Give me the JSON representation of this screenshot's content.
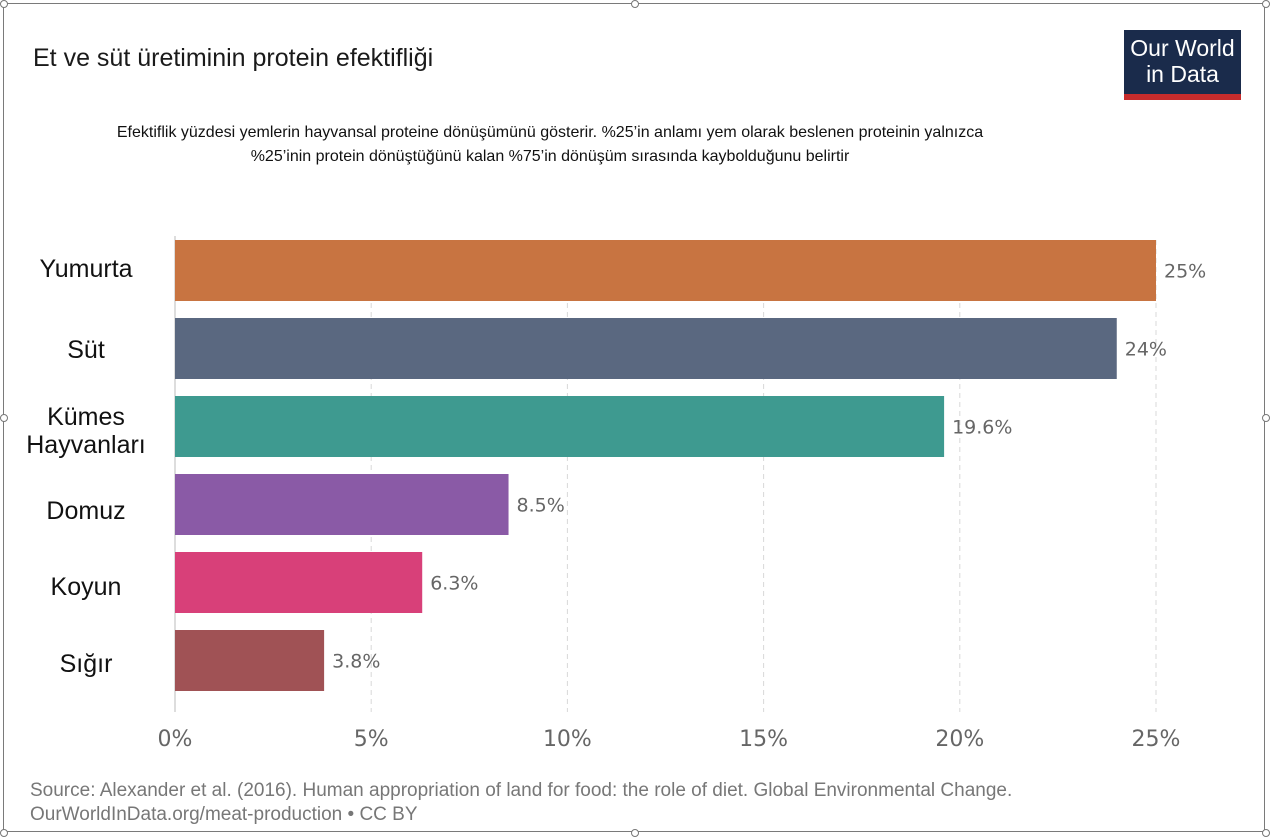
{
  "title": "Et ve süt üretiminin protein efektifliği",
  "subtitle_line1": "Efektiflik yüzdesi yemlerin hayvansal proteine dönüşümünü gösterir. %25’in anlamı yem olarak beslenen proteinin yalnızca",
  "subtitle_line2": "%25’inin protein dönüştüğünü kalan %75’in dönüşüm sırasında kaybolduğunu belirtir",
  "logo": {
    "line1": "Our World",
    "line2": "in Data",
    "bg_color": "#1a2b4b",
    "accent_color": "#c72c2c"
  },
  "source": {
    "line1": "Source: Alexander et al. (2016). Human appropriation of land for food: the role of diet. Global Environmental Change.",
    "line2": "OurWorldInData.org/meat-production • CC BY"
  },
  "chart_data": {
    "type": "bar",
    "orientation": "horizontal",
    "title": "Et ve süt üretiminin protein efektifliği",
    "categories": [
      "Yumurta",
      "Süt",
      "Kümes Hayvanları",
      "Domuz",
      "Koyun",
      "Sığır"
    ],
    "category_lines": [
      [
        "Yumurta"
      ],
      [
        "Süt"
      ],
      [
        "Kümes",
        "Hayvanları"
      ],
      [
        "Domuz"
      ],
      [
        "Koyun"
      ],
      [
        "Sığır"
      ]
    ],
    "values": [
      25,
      24,
      19.6,
      8.5,
      6.3,
      3.8
    ],
    "value_labels": [
      "25%",
      "24%",
      "19.6%",
      "8.5%",
      "6.3%",
      "3.8%"
    ],
    "colors": [
      "#c87441",
      "#5a6880",
      "#3e9a90",
      "#8a5aa6",
      "#d84079",
      "#a05255"
    ],
    "xlim": [
      0,
      25
    ],
    "xticks": [
      0,
      5,
      10,
      15,
      20,
      25
    ],
    "xtick_labels": [
      "0%",
      "5%",
      "10%",
      "15%",
      "20%",
      "25%"
    ],
    "grid": true,
    "xlabel": "",
    "ylabel": ""
  }
}
